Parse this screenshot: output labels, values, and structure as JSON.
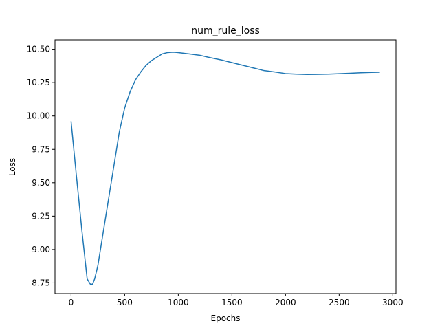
{
  "chart_data": {
    "type": "line",
    "title": "num_rule_loss",
    "xlabel": "Epochs",
    "ylabel": "Loss",
    "xlim": [
      -150,
      3030
    ],
    "ylim": [
      8.67,
      10.57
    ],
    "xticks": [
      0,
      500,
      1000,
      1500,
      2000,
      2500,
      3000
    ],
    "xtick_labels": [
      "0",
      "500",
      "1000",
      "1500",
      "2000",
      "2500",
      "3000"
    ],
    "yticks": [
      8.75,
      9.0,
      9.25,
      9.5,
      9.75,
      10.0,
      10.25,
      10.5
    ],
    "ytick_labels": [
      "8.75",
      "9.00",
      "9.25",
      "9.50",
      "9.75",
      "10.00",
      "10.25",
      "10.50"
    ],
    "grid": false,
    "legend": "none",
    "series": [
      {
        "color": "#1f77b4",
        "x": [
          0,
          50,
          100,
          150,
          180,
          200,
          220,
          250,
          300,
          350,
          400,
          450,
          500,
          550,
          600,
          650,
          700,
          750,
          800,
          850,
          900,
          950,
          1000,
          1100,
          1200,
          1280,
          1400,
          1500,
          1600,
          1700,
          1800,
          1900,
          2000,
          2100,
          2200,
          2280,
          2400,
          2500,
          2600,
          2700,
          2800,
          2880
        ],
        "y": [
          9.96,
          9.55,
          9.15,
          8.78,
          8.74,
          8.74,
          8.78,
          8.88,
          9.13,
          9.38,
          9.63,
          9.88,
          10.06,
          10.18,
          10.27,
          10.33,
          10.38,
          10.415,
          10.44,
          10.465,
          10.475,
          10.478,
          10.475,
          10.465,
          10.455,
          10.44,
          10.42,
          10.4,
          10.38,
          10.36,
          10.34,
          10.33,
          10.318,
          10.314,
          10.311,
          10.312,
          10.314,
          10.317,
          10.32,
          10.324,
          10.327,
          10.328
        ]
      }
    ]
  }
}
